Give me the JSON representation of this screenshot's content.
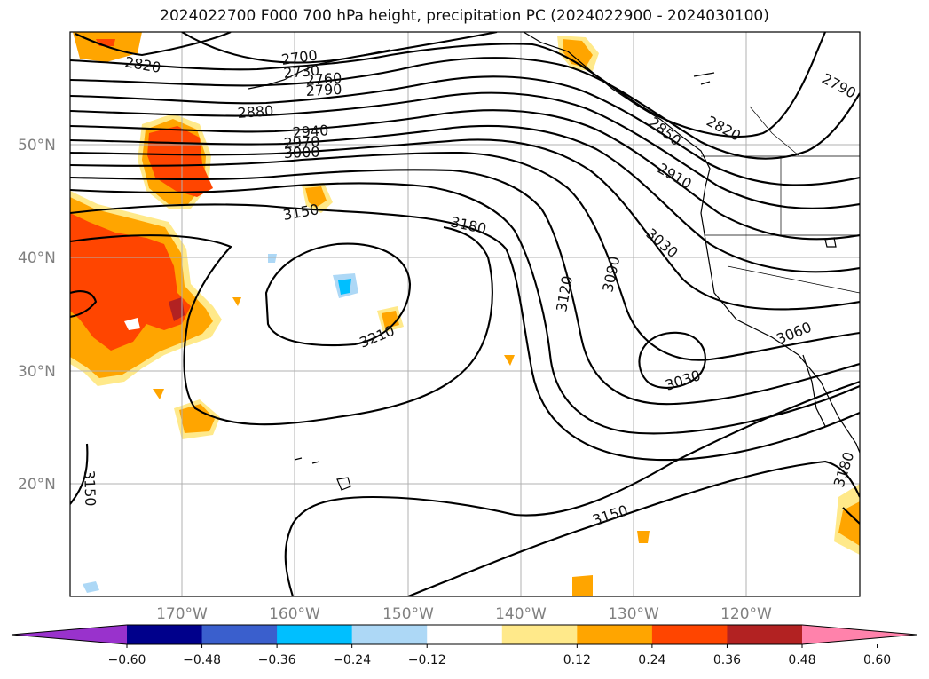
{
  "title": "2024022700 F000 700 hPa height, precipitation PC (2024022900 - 2024030100)",
  "map": {
    "lat_labels": [
      "50°N",
      "40°N",
      "30°N",
      "20°N"
    ],
    "lon_labels": [
      "170°W",
      "160°W",
      "150°W",
      "140°W",
      "130°W",
      "120°W"
    ],
    "contour_labels": [
      {
        "text": "2820"
      },
      {
        "text": "2700"
      },
      {
        "text": "2730"
      },
      {
        "text": "2760"
      },
      {
        "text": "2790"
      },
      {
        "text": "2880"
      },
      {
        "text": "2940"
      },
      {
        "text": "2970"
      },
      {
        "text": "3000"
      },
      {
        "text": "3150"
      },
      {
        "text": "3180"
      },
      {
        "text": "3210"
      },
      {
        "text": "2850"
      },
      {
        "text": "2820"
      },
      {
        "text": "2790"
      },
      {
        "text": "2910"
      },
      {
        "text": "3030"
      },
      {
        "text": "3090"
      },
      {
        "text": "3120"
      },
      {
        "text": "3060"
      },
      {
        "text": "3030"
      },
      {
        "text": "3150"
      },
      {
        "text": "3180"
      },
      {
        "text": "3150"
      }
    ]
  },
  "colorbar": {
    "ticks": [
      "−0.60",
      "−0.48",
      "−0.36",
      "−0.24",
      "−0.12",
      "0.12",
      "0.24",
      "0.36",
      "0.48",
      "0.60"
    ],
    "colors": [
      "#9932cc",
      "#00008b",
      "#3a5fcd",
      "#00bfff",
      "#add8f6",
      "#ffffff",
      "#ffe98a",
      "#ffa500",
      "#ff4500",
      "#b22222",
      "#ff82ab"
    ]
  }
}
